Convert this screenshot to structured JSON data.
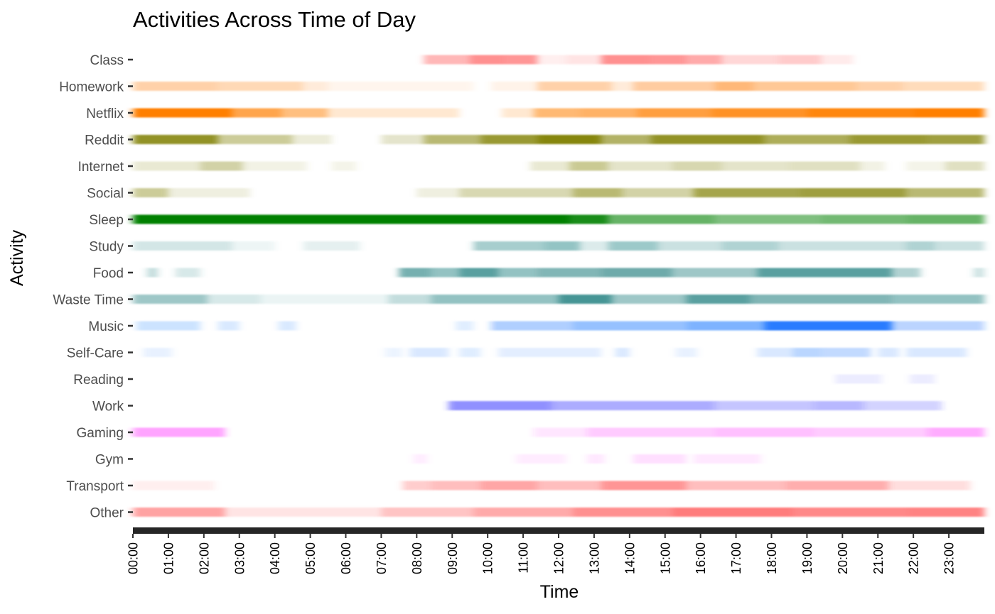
{
  "chart_data": {
    "type": "heatmap",
    "title": "Activities Across Time of Day",
    "xlabel": "Time",
    "ylabel": "Activity",
    "x_ticks": [
      "00:00",
      "01:00",
      "02:00",
      "03:00",
      "04:00",
      "05:00",
      "06:00",
      "07:00",
      "08:00",
      "09:00",
      "10:00",
      "11:00",
      "12:00",
      "13:00",
      "14:00",
      "15:00",
      "16:00",
      "17:00",
      "18:00",
      "19:00",
      "20:00",
      "21:00",
      "22:00",
      "23:00"
    ],
    "xlim": [
      0,
      24
    ],
    "grid": false,
    "legend": "none",
    "activities": [
      {
        "name": "Class",
        "color": "#ff7c7c",
        "segments": [
          [
            8.2,
            9.5,
            0.55
          ],
          [
            9.5,
            10.5,
            0.85
          ],
          [
            10.5,
            11.4,
            0.8
          ],
          [
            11.4,
            12.2,
            0.12
          ],
          [
            12.2,
            13.2,
            0.2
          ],
          [
            13.2,
            14.6,
            0.85
          ],
          [
            14.6,
            15.6,
            0.8
          ],
          [
            15.6,
            16.6,
            0.65
          ],
          [
            16.6,
            18.2,
            0.3
          ],
          [
            18.2,
            19.4,
            0.4
          ],
          [
            19.4,
            20.3,
            0.15
          ]
        ]
      },
      {
        "name": "Homework",
        "color": "#ff9a40",
        "segments": [
          [
            0,
            2.4,
            0.45
          ],
          [
            2.4,
            4.8,
            0.38
          ],
          [
            4.8,
            5.5,
            0.2
          ],
          [
            5.5,
            9.6,
            0.1
          ],
          [
            10.1,
            11.4,
            0.12
          ],
          [
            11.4,
            13.5,
            0.45
          ],
          [
            13.5,
            14.1,
            0.2
          ],
          [
            14.1,
            16.4,
            0.5
          ],
          [
            16.4,
            17.5,
            0.7
          ],
          [
            17.5,
            20.4,
            0.55
          ],
          [
            20.4,
            21.7,
            0.45
          ],
          [
            21.7,
            24,
            0.35
          ]
        ]
      },
      {
        "name": "Netflix",
        "color": "#ff7f00",
        "segments": [
          [
            0,
            2.8,
            1.0
          ],
          [
            2.8,
            4.2,
            0.7
          ],
          [
            4.2,
            5.5,
            0.5
          ],
          [
            5.5,
            9.2,
            0.18
          ],
          [
            10.4,
            11.3,
            0.18
          ],
          [
            11.3,
            12.6,
            0.55
          ],
          [
            12.6,
            14.2,
            0.6
          ],
          [
            14.2,
            16.3,
            0.75
          ],
          [
            16.3,
            19.0,
            0.85
          ],
          [
            19.0,
            22.0,
            0.95
          ],
          [
            22.0,
            24,
            1.0
          ]
        ]
      },
      {
        "name": "Reddit",
        "color": "#7f7f00",
        "segments": [
          [
            0,
            2.4,
            0.85
          ],
          [
            2.4,
            4.5,
            0.4
          ],
          [
            4.5,
            5.6,
            0.15
          ],
          [
            7.0,
            8.2,
            0.2
          ],
          [
            8.2,
            9.8,
            0.55
          ],
          [
            9.8,
            11.4,
            0.8
          ],
          [
            11.4,
            13.2,
            0.95
          ],
          [
            13.2,
            14.6,
            0.6
          ],
          [
            14.6,
            17.8,
            0.85
          ],
          [
            17.8,
            20.2,
            0.65
          ],
          [
            20.2,
            22.4,
            0.8
          ],
          [
            22.4,
            24,
            0.75
          ]
        ]
      },
      {
        "name": "Internet",
        "color": "#a6a64d",
        "segments": [
          [
            0,
            1.9,
            0.25
          ],
          [
            1.9,
            3.1,
            0.5
          ],
          [
            3.1,
            4.9,
            0.15
          ],
          [
            5.6,
            6.3,
            0.12
          ],
          [
            11.2,
            12.3,
            0.25
          ],
          [
            12.3,
            13.4,
            0.6
          ],
          [
            13.4,
            15.2,
            0.3
          ],
          [
            15.2,
            16.6,
            0.45
          ],
          [
            16.6,
            18.5,
            0.3
          ],
          [
            18.5,
            20.5,
            0.35
          ],
          [
            20.5,
            21.2,
            0.15
          ],
          [
            21.8,
            22.9,
            0.12
          ],
          [
            22.9,
            24,
            0.35
          ]
        ]
      },
      {
        "name": "Social",
        "color": "#7f7f00",
        "segments": [
          [
            0,
            1.0,
            0.4
          ],
          [
            1.0,
            3.3,
            0.12
          ],
          [
            8.0,
            9.2,
            0.12
          ],
          [
            9.2,
            12.4,
            0.3
          ],
          [
            12.4,
            13.8,
            0.55
          ],
          [
            13.8,
            15.8,
            0.35
          ],
          [
            15.8,
            18.8,
            0.7
          ],
          [
            18.8,
            21.8,
            0.75
          ],
          [
            21.8,
            24,
            0.55
          ]
        ]
      },
      {
        "name": "Sleep",
        "color": "#008000",
        "segments": [
          [
            0,
            12.3,
            1.0
          ],
          [
            12.3,
            13.4,
            0.9
          ],
          [
            13.4,
            16.4,
            0.6
          ],
          [
            16.4,
            19.4,
            0.5
          ],
          [
            19.4,
            21.8,
            0.55
          ],
          [
            21.8,
            24,
            0.6
          ]
        ]
      },
      {
        "name": "Study",
        "color": "#4d9d9d",
        "segments": [
          [
            0,
            2.8,
            0.25
          ],
          [
            2.8,
            4.0,
            0.1
          ],
          [
            4.8,
            6.4,
            0.15
          ],
          [
            9.6,
            11.6,
            0.5
          ],
          [
            11.6,
            12.6,
            0.6
          ],
          [
            12.6,
            13.4,
            0.2
          ],
          [
            13.4,
            14.8,
            0.55
          ],
          [
            14.8,
            16.6,
            0.3
          ],
          [
            16.6,
            18.2,
            0.45
          ],
          [
            18.2,
            21.8,
            0.3
          ],
          [
            21.8,
            22.6,
            0.45
          ],
          [
            22.6,
            24,
            0.3
          ]
        ]
      },
      {
        "name": "Food",
        "color": "#3d8f8f",
        "segments": [
          [
            0.4,
            0.7,
            0.3
          ],
          [
            1.2,
            1.9,
            0.2
          ],
          [
            7.5,
            8.4,
            0.7
          ],
          [
            8.4,
            9.2,
            0.55
          ],
          [
            9.2,
            10.3,
            0.85
          ],
          [
            10.3,
            11.4,
            0.55
          ],
          [
            11.4,
            13.2,
            0.65
          ],
          [
            13.2,
            15.2,
            0.75
          ],
          [
            15.2,
            16.5,
            0.5
          ],
          [
            16.5,
            17.6,
            0.5
          ],
          [
            17.6,
            21.4,
            0.85
          ],
          [
            21.4,
            22.2,
            0.4
          ],
          [
            23.7,
            24,
            0.25
          ]
        ]
      },
      {
        "name": "Waste Time",
        "color": "#3d8f8f",
        "segments": [
          [
            0,
            2.1,
            0.5
          ],
          [
            2.1,
            3.6,
            0.2
          ],
          [
            3.6,
            7.2,
            0.1
          ],
          [
            7.2,
            8.4,
            0.3
          ],
          [
            8.4,
            12.0,
            0.55
          ],
          [
            12.0,
            13.5,
            0.95
          ],
          [
            13.5,
            15.6,
            0.5
          ],
          [
            15.6,
            17.4,
            0.85
          ],
          [
            17.4,
            21.4,
            0.65
          ],
          [
            21.4,
            24,
            0.55
          ]
        ]
      },
      {
        "name": "Music",
        "color": "#1a75ff",
        "segments": [
          [
            0.1,
            1.9,
            0.2
          ],
          [
            2.4,
            3.0,
            0.15
          ],
          [
            4.1,
            4.6,
            0.15
          ],
          [
            9.1,
            9.6,
            0.12
          ],
          [
            10.1,
            12.4,
            0.35
          ],
          [
            12.4,
            15.6,
            0.45
          ],
          [
            15.6,
            17.8,
            0.55
          ],
          [
            17.8,
            21.4,
            0.95
          ],
          [
            21.4,
            24,
            0.3
          ]
        ]
      },
      {
        "name": "Self-Care",
        "color": "#66a3ff",
        "segments": [
          [
            0.3,
            1.1,
            0.15
          ],
          [
            7.1,
            7.6,
            0.12
          ],
          [
            7.8,
            8.9,
            0.25
          ],
          [
            9.2,
            9.8,
            0.2
          ],
          [
            10.3,
            13.2,
            0.18
          ],
          [
            13.6,
            14.0,
            0.25
          ],
          [
            15.3,
            15.9,
            0.15
          ],
          [
            17.6,
            18.6,
            0.25
          ],
          [
            18.6,
            19.4,
            0.45
          ],
          [
            19.4,
            20.8,
            0.4
          ],
          [
            21.0,
            21.6,
            0.25
          ],
          [
            21.8,
            23.5,
            0.25
          ]
        ]
      },
      {
        "name": "Reading",
        "color": "#8080ff",
        "segments": [
          [
            19.8,
            21.1,
            0.15
          ],
          [
            21.9,
            22.6,
            0.15
          ]
        ]
      },
      {
        "name": "Work",
        "color": "#3333ff",
        "segments": [
          [
            8.9,
            11.8,
            0.55
          ],
          [
            11.8,
            16.4,
            0.4
          ],
          [
            16.4,
            19.2,
            0.28
          ],
          [
            19.2,
            20.6,
            0.35
          ],
          [
            20.6,
            22.8,
            0.22
          ]
        ]
      },
      {
        "name": "Gaming",
        "color": "#ff33ff",
        "segments": [
          [
            0,
            2.6,
            0.45
          ],
          [
            11.3,
            12.8,
            0.12
          ],
          [
            12.8,
            16.4,
            0.25
          ],
          [
            16.4,
            19.2,
            0.3
          ],
          [
            19.2,
            22.4,
            0.25
          ],
          [
            22.4,
            24,
            0.4
          ]
        ]
      },
      {
        "name": "Gym",
        "color": "#ff66ff",
        "segments": [
          [
            7.9,
            8.3,
            0.12
          ],
          [
            10.8,
            12.2,
            0.12
          ],
          [
            12.8,
            13.3,
            0.15
          ],
          [
            14.1,
            15.6,
            0.2
          ],
          [
            15.8,
            17.7,
            0.15
          ]
        ]
      },
      {
        "name": "Transport",
        "color": "#ff5c5c",
        "segments": [
          [
            0,
            2.3,
            0.1
          ],
          [
            7.6,
            8.4,
            0.3
          ],
          [
            8.4,
            9.8,
            0.4
          ],
          [
            9.8,
            11.4,
            0.55
          ],
          [
            11.4,
            13.2,
            0.4
          ],
          [
            13.2,
            15.6,
            0.65
          ],
          [
            15.6,
            18.4,
            0.4
          ],
          [
            18.4,
            21.3,
            0.5
          ],
          [
            21.3,
            23.6,
            0.2
          ]
        ]
      },
      {
        "name": "Other",
        "color": "#ff7c7c",
        "segments": [
          [
            0,
            2.6,
            0.7
          ],
          [
            2.6,
            7.0,
            0.2
          ],
          [
            7.0,
            9.6,
            0.45
          ],
          [
            9.6,
            12.4,
            0.65
          ],
          [
            12.4,
            15.2,
            0.85
          ],
          [
            15.2,
            18.6,
            1.0
          ],
          [
            18.6,
            21.8,
            0.9
          ],
          [
            21.8,
            24,
            0.95
          ]
        ]
      }
    ]
  }
}
